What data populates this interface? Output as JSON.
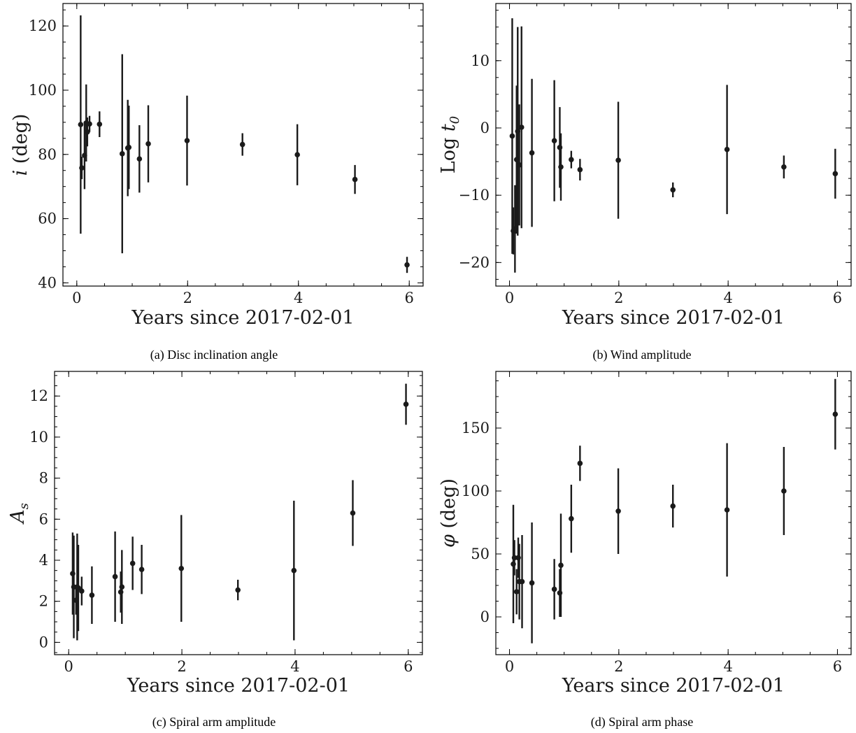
{
  "chart_data": [
    {
      "id": "a",
      "type": "scatter",
      "caption": "(a) Disc inclination angle",
      "xlabel": "Years since 2017-02-01",
      "ylabel_main": "i",
      "ylabel_rest": " (deg)",
      "ylabel_sub": "",
      "xlim": [
        -0.25,
        6.25
      ],
      "ylim": [
        39,
        127
      ],
      "xticks": [
        0,
        2,
        4,
        6
      ],
      "yticks": [
        40,
        60,
        80,
        100,
        120
      ],
      "x": [
        0.07,
        0.09,
        0.14,
        0.17,
        0.19,
        0.23,
        0.41,
        0.82,
        0.92,
        0.94,
        1.13,
        1.29,
        1.99,
        2.99,
        3.98,
        5.02,
        5.96
      ],
      "y": [
        89.3,
        75.8,
        79.7,
        89.8,
        87.0,
        89.5,
        89.4,
        80.2,
        82.0,
        82.2,
        78.6,
        83.3,
        84.3,
        83.1,
        79.9,
        72.2,
        45.6
      ],
      "err": [
        34,
        3.5,
        10.5,
        12,
        4.5,
        2.5,
        4,
        31,
        15,
        13,
        10.5,
        12,
        14,
        3.5,
        9.5,
        4.5,
        2.5
      ]
    },
    {
      "id": "b",
      "type": "scatter",
      "caption": "(b) Wind amplitude",
      "xlabel": "Years since 2017-02-01",
      "ylabel_main": "Log t",
      "ylabel_rest": "",
      "ylabel_sub": "0",
      "xlim": [
        -0.25,
        6.25
      ],
      "ylim": [
        -23.5,
        18.5
      ],
      "xticks": [
        0,
        2,
        4,
        6
      ],
      "yticks": [
        -20,
        -10,
        0,
        10
      ],
      "x": [
        0.05,
        0.07,
        0.1,
        0.13,
        0.15,
        0.18,
        0.22,
        0.41,
        0.82,
        0.92,
        0.94,
        1.13,
        1.29,
        1.99,
        2.99,
        3.98,
        5.02,
        5.96
      ],
      "y": [
        -1.2,
        -15.3,
        -15.0,
        -4.7,
        -0.5,
        -5.5,
        0.1,
        -3.7,
        -1.9,
        -2.9,
        -5.8,
        -4.7,
        -6.2,
        -4.8,
        -9.2,
        -3.2,
        -5.8,
        -6.8
      ],
      "err": [
        17.5,
        3.5,
        6.5,
        11,
        15.5,
        9,
        15,
        11,
        9,
        6,
        5,
        1.3,
        1.6,
        8.7,
        1.1,
        9.6,
        1.7,
        3.7
      ]
    },
    {
      "id": "c",
      "type": "scatter",
      "caption": "(c) Spiral arm amplitude",
      "xlabel": "Years since 2017-02-01",
      "ylabel_main": "A",
      "ylabel_rest": "",
      "ylabel_sub": "s",
      "xlim": [
        -0.25,
        6.25
      ],
      "ylim": [
        -0.6,
        13.2
      ],
      "xticks": [
        0,
        2,
        4,
        6
      ],
      "yticks": [
        0,
        2,
        4,
        6,
        8,
        10,
        12
      ],
      "x": [
        0.07,
        0.09,
        0.13,
        0.15,
        0.17,
        0.23,
        0.41,
        0.82,
        0.92,
        0.94,
        1.13,
        1.29,
        1.99,
        2.99,
        3.98,
        5.02,
        5.96
      ],
      "y": [
        3.35,
        2.7,
        2.05,
        2.7,
        2.65,
        2.5,
        2.3,
        3.2,
        2.45,
        2.7,
        3.85,
        3.55,
        3.6,
        2.55,
        3.5,
        6.3,
        11.6
      ],
      "err": [
        2.0,
        2.5,
        0.7,
        2.6,
        2.1,
        0.7,
        1.4,
        2.2,
        1.0,
        1.8,
        1.3,
        1.2,
        2.6,
        0.5,
        3.4,
        1.6,
        1.0
      ]
    },
    {
      "id": "d",
      "type": "scatter",
      "caption": "(d) Spiral arm phase",
      "xlabel": "Years since 2017-02-01",
      "ylabel_main": "φ",
      "ylabel_rest": " (deg)",
      "ylabel_sub": "",
      "xlim": [
        -0.25,
        6.25
      ],
      "ylim": [
        -30,
        195
      ],
      "xticks": [
        0,
        2,
        4,
        6
      ],
      "yticks": [
        0,
        50,
        100,
        150
      ],
      "x": [
        0.07,
        0.09,
        0.13,
        0.16,
        0.18,
        0.23,
        0.41,
        0.82,
        0.92,
        0.94,
        1.13,
        1.29,
        1.99,
        2.99,
        3.98,
        5.02,
        5.96
      ],
      "y": [
        42,
        47,
        20,
        47,
        28,
        28,
        27,
        22,
        19,
        41,
        78,
        122,
        84,
        88,
        85,
        100,
        161
      ],
      "err": [
        47,
        14,
        18,
        16,
        30,
        37,
        48,
        24,
        19,
        41,
        27,
        14,
        34,
        17,
        53,
        35,
        28
      ]
    }
  ]
}
